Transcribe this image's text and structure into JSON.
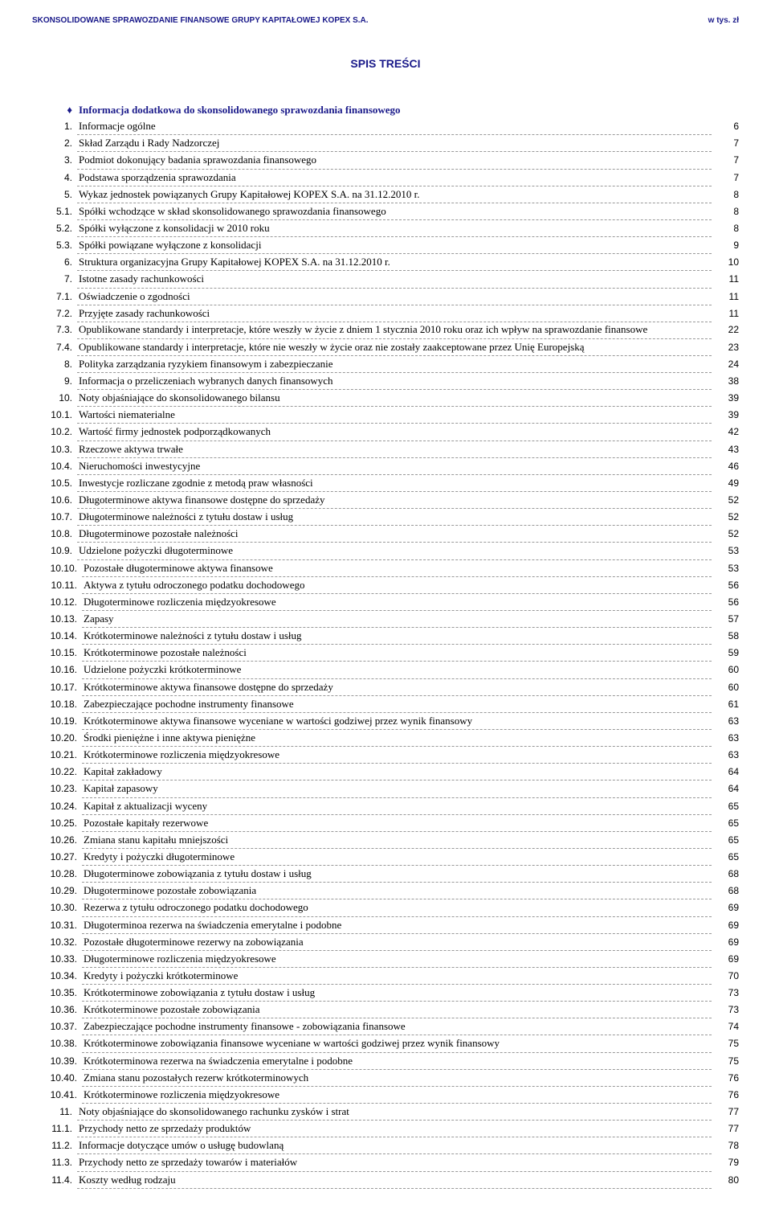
{
  "header": {
    "left": "SKONSOLIDOWANE SPRAWOZDANIE FINANSOWE GRUPY KAPITAŁOWEJ KOPEX S.A.",
    "right": "w tys. zł"
  },
  "title": "SPIS TREŚCI",
  "bullet": {
    "sym": "♦",
    "label": "Informacja dodatkowa do skonsolidowanego sprawozdania finansowego"
  },
  "rows": [
    {
      "n": "1.",
      "t": "Informacje ogólne",
      "p": "6"
    },
    {
      "n": "2.",
      "t": "Skład Zarządu i Rady Nadzorczej",
      "p": "7"
    },
    {
      "n": "3.",
      "t": "Podmiot dokonujący badania sprawozdania finansowego",
      "p": "7"
    },
    {
      "n": "4.",
      "t": "Podstawa sporządzenia sprawozdania",
      "p": "7"
    },
    {
      "n": "5.",
      "t": "Wykaz jednostek powiązanych Grupy Kapitałowej KOPEX S.A. na 31.12.2010 r.",
      "p": "8"
    },
    {
      "n": "5.1.",
      "t": "Spółki wchodzące w skład skonsolidowanego sprawozdania finansowego",
      "p": "8",
      "lvl": 1
    },
    {
      "n": "5.2.",
      "t": "Spółki wyłączone z konsolidacji w 2010 roku",
      "p": "8",
      "lvl": 1
    },
    {
      "n": "5.3.",
      "t": "Spółki powiązane wyłączone z konsolidacji",
      "p": "9",
      "lvl": 1
    },
    {
      "n": "6.",
      "t": "Struktura organizacyjna Grupy Kapitałowej KOPEX S.A.  na 31.12.2010 r.",
      "p": "10"
    },
    {
      "n": "7.",
      "t": "Istotne zasady rachunkowości",
      "p": "11"
    },
    {
      "n": "7.1.",
      "t": "Oświadczenie o zgodności",
      "p": "11",
      "lvl": 1
    },
    {
      "n": "7.2.",
      "t": "Przyjęte zasady rachunkowości",
      "p": "11",
      "lvl": 1
    },
    {
      "n": "7.3.",
      "t": "Opublikowane standardy i interpretacje, które weszły w życie z dniem 1 stycznia 2010 roku oraz ich wpływ na sprawozdanie finansowe",
      "p": "22",
      "lvl": 1,
      "multi": true
    },
    {
      "n": "7.4.",
      "t": "Opublikowane standardy i interpretacje, które nie weszły w życie oraz nie zostały zaakceptowane przez Unię Europejską",
      "p": "23",
      "lvl": 1
    },
    {
      "n": "8.",
      "t": "Polityka zarządzania ryzykiem finansowym i zabezpieczanie",
      "p": "24"
    },
    {
      "n": "9.",
      "t": "Informacja o przeliczeniach wybranych danych finansowych",
      "p": "38"
    },
    {
      "n": "10.",
      "t": "Noty objaśniające do skonsolidowanego bilansu",
      "p": "39"
    },
    {
      "n": "10.1.",
      "t": "Wartości niematerialne",
      "p": "39",
      "lvl": 1
    },
    {
      "n": "10.2.",
      "t": "Wartość firmy jednostek podporządkowanych",
      "p": "42",
      "lvl": 1
    },
    {
      "n": "10.3.",
      "t": "Rzeczowe aktywa trwałe",
      "p": "43",
      "lvl": 1
    },
    {
      "n": "10.4.",
      "t": "Nieruchomości inwestycyjne",
      "p": "46",
      "lvl": 1
    },
    {
      "n": "10.5.",
      "t": "Inwestycje rozliczane zgodnie z metodą praw własności",
      "p": "49",
      "lvl": 1
    },
    {
      "n": "10.6.",
      "t": "Długoterminowe aktywa finansowe dostępne do sprzedaży",
      "p": "52",
      "lvl": 1
    },
    {
      "n": "10.7.",
      "t": "Długoterminowe należności z tytułu dostaw i usług",
      "p": "52",
      "lvl": 1
    },
    {
      "n": "10.8.",
      "t": "Długoterminowe pozostałe należności",
      "p": "52",
      "lvl": 1
    },
    {
      "n": "10.9.",
      "t": "Udzielone pożyczki długoterminowe",
      "p": "53",
      "lvl": 1
    },
    {
      "n": "10.10.",
      "t": "Pozostałe długoterminowe aktywa finansowe",
      "p": "53",
      "lvl": 1
    },
    {
      "n": "10.11.",
      "t": "Aktywa z tytułu odroczonego podatku dochodowego",
      "p": "56",
      "lvl": 1
    },
    {
      "n": "10.12.",
      "t": "Długoterminowe rozliczenia międzyokresowe",
      "p": "56",
      "lvl": 1
    },
    {
      "n": "10.13.",
      "t": "Zapasy",
      "p": "57",
      "lvl": 1
    },
    {
      "n": "10.14.",
      "t": "Krótkoterminowe należności z tytułu dostaw i usług",
      "p": "58",
      "lvl": 1
    },
    {
      "n": "10.15.",
      "t": "Krótkoterminowe pozostałe należności",
      "p": "59",
      "lvl": 1
    },
    {
      "n": "10.16.",
      "t": "Udzielone pożyczki krótkoterminowe",
      "p": "60",
      "lvl": 1
    },
    {
      "n": "10.17.",
      "t": "Krótkoterminowe aktywa finansowe dostępne do sprzedaży",
      "p": "60",
      "lvl": 1
    },
    {
      "n": "10.18.",
      "t": "Zabezpieczające pochodne instrumenty finansowe",
      "p": "61",
      "lvl": 1
    },
    {
      "n": "10.19.",
      "t": "Krótkoterminowe aktywa finansowe wyceniane w wartości godziwej przez wynik finansowy",
      "p": "63",
      "lvl": 1
    },
    {
      "n": "10.20.",
      "t": "Środki pieniężne i inne aktywa pieniężne",
      "p": "63",
      "lvl": 1
    },
    {
      "n": "10.21.",
      "t": "Krótkoterminowe rozliczenia międzyokresowe",
      "p": "63",
      "lvl": 1
    },
    {
      "n": "10.22.",
      "t": "Kapitał zakładowy",
      "p": "64",
      "lvl": 1
    },
    {
      "n": "10.23.",
      "t": "Kapitał zapasowy",
      "p": "64",
      "lvl": 1
    },
    {
      "n": "10.24.",
      "t": "Kapitał z aktualizacji wyceny",
      "p": "65",
      "lvl": 1
    },
    {
      "n": "10.25.",
      "t": "Pozostałe kapitały rezerwowe",
      "p": "65",
      "lvl": 1
    },
    {
      "n": "10.26.",
      "t": "Zmiana stanu kapitału mniejszości",
      "p": "65",
      "lvl": 1
    },
    {
      "n": "10.27.",
      "t": "Kredyty i pożyczki długoterminowe",
      "p": "65",
      "lvl": 1
    },
    {
      "n": "10.28.",
      "t": "Długoterminowe zobowiązania z tytułu dostaw i usług",
      "p": "68",
      "lvl": 1
    },
    {
      "n": "10.29.",
      "t": "Długoterminowe pozostałe zobowiązania",
      "p": "68",
      "lvl": 1
    },
    {
      "n": "10.30.",
      "t": "Rezerwa z tytułu odroczonego podatku dochodowego",
      "p": "69",
      "lvl": 1
    },
    {
      "n": "10.31.",
      "t": "Długoterminoa rezerwa na świadczenia emerytalne i podobne",
      "p": "69",
      "lvl": 1
    },
    {
      "n": "10.32.",
      "t": "Pozostałe długoterminowe rezerwy na zobowiązania",
      "p": "69",
      "lvl": 1
    },
    {
      "n": "10.33.",
      "t": "Długoterminowe rozliczenia międzyokresowe",
      "p": "69",
      "lvl": 1
    },
    {
      "n": "10.34.",
      "t": "Kredyty i pożyczki krótkoterminowe",
      "p": "70",
      "lvl": 1
    },
    {
      "n": "10.35.",
      "t": "Krótkoterminowe zobowiązania z tytułu dostaw i usług",
      "p": "73",
      "lvl": 1
    },
    {
      "n": "10.36.",
      "t": "Krótkoterminowe pozostałe zobowiązania",
      "p": "73",
      "lvl": 1
    },
    {
      "n": "10.37.",
      "t": "Zabezpieczające pochodne instrumenty finansowe -  zobowiązania finansowe",
      "p": "74",
      "lvl": 1
    },
    {
      "n": "10.38.",
      "t": "Krótkoterminowe zobowiązania finansowe wyceniane w wartości godziwej przez wynik finansowy",
      "p": "75",
      "lvl": 1
    },
    {
      "n": "10.39.",
      "t": "Krótkoterminowa rezerwa na świadczenia emerytalne i podobne",
      "p": "75",
      "lvl": 1
    },
    {
      "n": "10.40.",
      "t": "Zmiana stanu pozostałych rezerw krótkoterminowych",
      "p": "76",
      "lvl": 1
    },
    {
      "n": "10.41.",
      "t": "Krótkoterminowe rozliczenia międzyokresowe",
      "p": "76",
      "lvl": 1
    },
    {
      "n": "11.",
      "t": "Noty objaśniające do skonsolidowanego rachunku zysków i strat",
      "p": "77"
    },
    {
      "n": "11.1.",
      "t": "Przychody netto ze sprzedaży produktów",
      "p": "77",
      "lvl": 1
    },
    {
      "n": "11.2.",
      "t": "Informacje dotyczące umów o usługę budowlaną",
      "p": "78",
      "lvl": 1
    },
    {
      "n": "11.3.",
      "t": "Przychody netto ze sprzedaży towarów i materiałów",
      "p": "79",
      "lvl": 1
    },
    {
      "n": "11.4.",
      "t": "Koszty według rodzaju",
      "p": "80",
      "lvl": 1
    }
  ]
}
